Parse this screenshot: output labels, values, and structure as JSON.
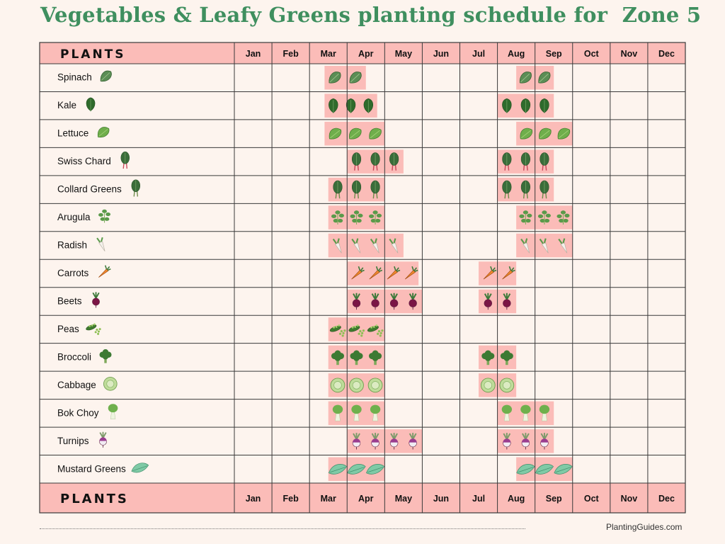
{
  "title": "Vegetables & Leafy Greens planting schedule for  Zone 5",
  "footer": {
    "site": "PlantingGuides.com"
  },
  "colors": {
    "header_bg": "#fbbcb8",
    "span_fill": "#fbbcb8",
    "grid_line": "#3a3a3a",
    "title": "#3f8f5f",
    "background": "#fdf4ee"
  },
  "chart_data": {
    "type": "table",
    "row_header": "PLANTS",
    "months": [
      "Jan",
      "Feb",
      "Mar",
      "Apr",
      "May",
      "Jun",
      "Jul",
      "Aug",
      "Sep",
      "Oct",
      "Nov",
      "Dec"
    ],
    "plants": [
      {
        "name": "Spinach",
        "icon": "spinach-icon",
        "spans": [
          [
            3.4,
            4.5
          ],
          [
            8.5,
            9.5
          ]
        ]
      },
      {
        "name": "Kale",
        "icon": "kale-icon",
        "spans": [
          [
            3.4,
            4.8
          ],
          [
            8.0,
            9.5
          ]
        ]
      },
      {
        "name": "Lettuce",
        "icon": "lettuce-icon",
        "spans": [
          [
            3.4,
            5.0
          ],
          [
            8.5,
            10.0
          ]
        ]
      },
      {
        "name": "Swiss Chard",
        "icon": "swiss-chard-icon",
        "spans": [
          [
            4.0,
            5.5
          ],
          [
            8.0,
            9.5
          ]
        ]
      },
      {
        "name": "Collard Greens",
        "icon": "collard-greens-icon",
        "spans": [
          [
            3.5,
            5.0
          ],
          [
            8.0,
            9.5
          ]
        ]
      },
      {
        "name": "Arugula",
        "icon": "arugula-icon",
        "spans": [
          [
            3.5,
            5.0
          ],
          [
            8.5,
            10.0
          ]
        ]
      },
      {
        "name": "Radish",
        "icon": "radish-icon",
        "spans": [
          [
            3.5,
            5.5
          ],
          [
            8.5,
            10.0
          ]
        ]
      },
      {
        "name": "Carrots",
        "icon": "carrot-icon",
        "spans": [
          [
            4.0,
            5.9
          ],
          [
            7.5,
            8.5
          ]
        ]
      },
      {
        "name": "Beets",
        "icon": "beet-icon",
        "spans": [
          [
            4.0,
            6.0
          ],
          [
            7.5,
            8.5
          ]
        ]
      },
      {
        "name": "Peas",
        "icon": "peas-icon",
        "spans": [
          [
            3.5,
            5.0
          ]
        ]
      },
      {
        "name": "Broccoli",
        "icon": "broccoli-icon",
        "spans": [
          [
            3.5,
            5.0
          ],
          [
            7.5,
            8.5
          ]
        ]
      },
      {
        "name": "Cabbage",
        "icon": "cabbage-icon",
        "spans": [
          [
            3.5,
            5.0
          ],
          [
            7.5,
            8.5
          ]
        ]
      },
      {
        "name": "Bok Choy",
        "icon": "bok-choy-icon",
        "spans": [
          [
            3.5,
            5.0
          ],
          [
            8.0,
            9.5
          ]
        ]
      },
      {
        "name": "Turnips",
        "icon": "turnip-icon",
        "spans": [
          [
            4.0,
            6.0
          ],
          [
            8.0,
            9.5
          ]
        ]
      },
      {
        "name": "Mustard Greens",
        "icon": "mustard-greens-icon",
        "spans": [
          [
            3.5,
            5.0
          ],
          [
            8.5,
            10.0
          ]
        ]
      }
    ]
  }
}
